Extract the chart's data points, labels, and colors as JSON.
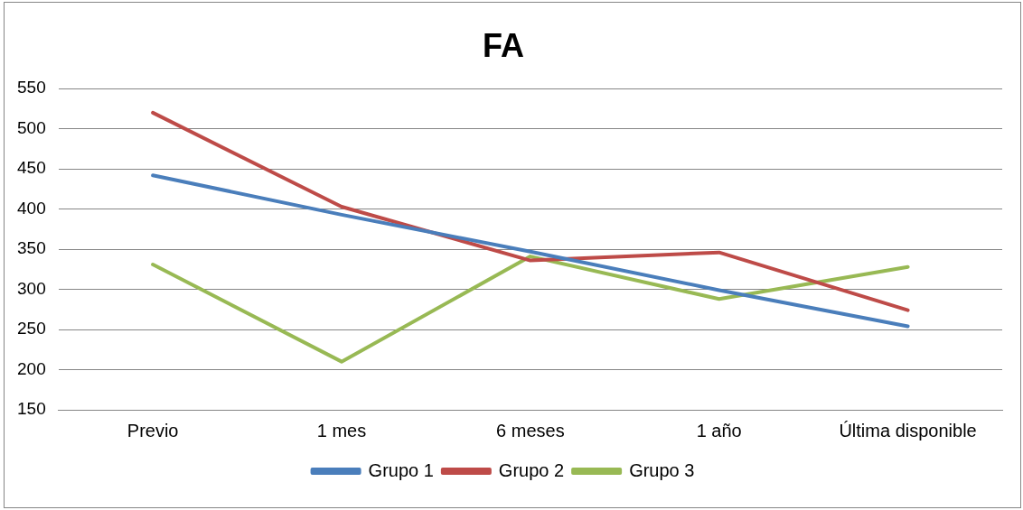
{
  "chart_data": {
    "type": "line",
    "title": "FA",
    "categories": [
      "Previo",
      "1 mes",
      "6 meses",
      "1 año",
      "Última disponible"
    ],
    "series": [
      {
        "name": "Grupo 1",
        "color": "#4a7ebb",
        "values": [
          442,
          393,
          347,
          299,
          254
        ]
      },
      {
        "name": "Grupo 2",
        "color": "#be4b48",
        "values": [
          520,
          403,
          336,
          346,
          274
        ]
      },
      {
        "name": "Grupo 3",
        "color": "#98b954",
        "values": [
          331,
          210,
          341,
          288,
          328
        ]
      }
    ],
    "ylim": [
      150,
      550
    ],
    "yticks": [
      150,
      200,
      250,
      300,
      350,
      400,
      450,
      500,
      550
    ],
    "grid": "y",
    "legend": "bottom",
    "marker": "none",
    "line_style": "solid"
  }
}
